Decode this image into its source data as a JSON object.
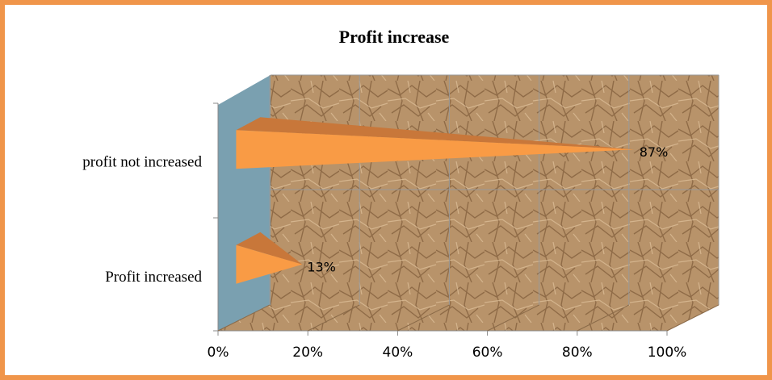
{
  "chart_data": {
    "type": "bar3d",
    "title": "Profit increase",
    "categories": [
      "Profit increased",
      "profit not increased"
    ],
    "values": [
      13,
      87
    ],
    "value_labels": [
      "13%",
      "87%"
    ],
    "color": "#f99b45",
    "xlim": [
      0,
      100
    ],
    "xticks": [
      {
        "value": 0,
        "label": "0%"
      },
      {
        "value": 20,
        "label": "20%"
      },
      {
        "value": 40,
        "label": "40%"
      },
      {
        "value": 60,
        "label": "60%"
      },
      {
        "value": 80,
        "label": "80%"
      },
      {
        "value": 100,
        "label": "100%"
      }
    ],
    "grid": true
  }
}
